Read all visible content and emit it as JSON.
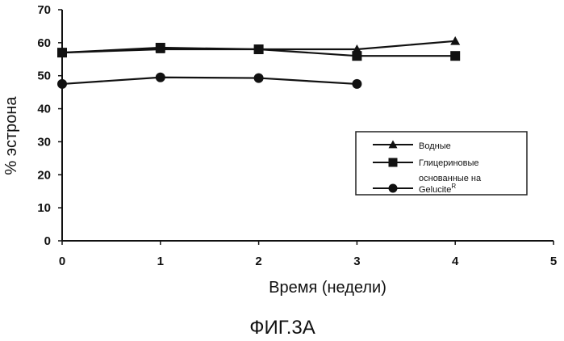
{
  "chart_data": {
    "type": "line",
    "title": "",
    "xlabel": "Время (недели)",
    "ylabel": "% эстрона",
    "xlim": [
      0,
      5
    ],
    "ylim": [
      0,
      70
    ],
    "xticks": [
      0,
      1,
      2,
      3,
      4,
      5
    ],
    "yticks": [
      0,
      10,
      20,
      30,
      40,
      50,
      60,
      70
    ],
    "grid": false,
    "legend_position": "right",
    "series": [
      {
        "name": "Водные",
        "marker": "triangle",
        "x": [
          0,
          1,
          2,
          3,
          4
        ],
        "y": [
          57,
          58,
          58,
          58,
          60.5
        ]
      },
      {
        "name": "Глицериновые",
        "marker": "square",
        "x": [
          0,
          1,
          2,
          3,
          4
        ],
        "y": [
          57,
          58.5,
          58,
          56,
          56
        ]
      },
      {
        "name": "основанные на Gelucite",
        "marker": "circle",
        "x": [
          0,
          1,
          2,
          3
        ],
        "y": [
          47.5,
          49.5,
          49.3,
          47.5
        ]
      }
    ],
    "legend_lines": [
      "Водные",
      "Глицериновые",
      "основанные на",
      "Gelucite"
    ],
    "legend_superscript": "R",
    "caption": "ФИГ.3А"
  }
}
